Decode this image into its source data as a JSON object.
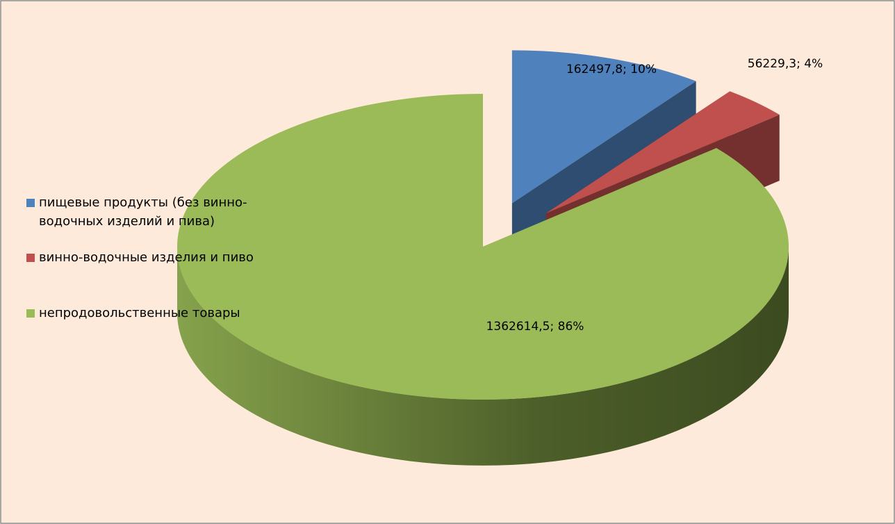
{
  "chart_data": {
    "type": "pie",
    "categories": [
      "пищевые продукты (без винно-водочных изделий и пива)",
      "винно-водочные изделия и пиво",
      "непродовольственные товары"
    ],
    "values": [
      162497.8,
      56229.3,
      1362614.5
    ],
    "value_labels": [
      "162497,8; 10%",
      "56229,3; 4%",
      "1362614,5; 86%"
    ],
    "colors": [
      "#4f81bd",
      "#c0504d",
      "#9bbb59"
    ],
    "exploded": [
      true,
      true,
      false
    ],
    "legend": "left"
  }
}
